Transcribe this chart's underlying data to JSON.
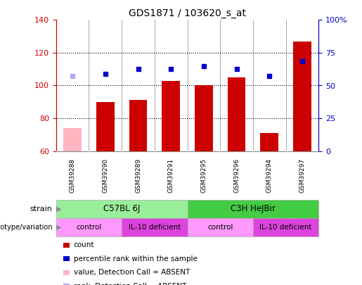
{
  "title": "GDS1871 / 103620_s_at",
  "samples": [
    "GSM39288",
    "GSM39290",
    "GSM39289",
    "GSM39291",
    "GSM39295",
    "GSM39296",
    "GSM39294",
    "GSM39297"
  ],
  "bar_values": [
    74,
    90,
    91,
    103,
    100,
    105,
    71,
    127
  ],
  "bar_colors": [
    "#ffb6c1",
    "#cc0000",
    "#cc0000",
    "#cc0000",
    "#cc0000",
    "#cc0000",
    "#cc0000",
    "#cc0000"
  ],
  "dot_values": [
    106,
    107,
    110,
    110,
    112,
    110,
    106,
    115
  ],
  "dot_colors": [
    "#aaaaee",
    "#0000cc",
    "#0000cc",
    "#0000cc",
    "#0000cc",
    "#0000cc",
    "#0000cc",
    "#0000cc"
  ],
  "ylim_left": [
    60,
    140
  ],
  "ylim_right": [
    0,
    100
  ],
  "yticks_left": [
    60,
    80,
    100,
    120,
    140
  ],
  "yticks_right": [
    0,
    25,
    50,
    75,
    100
  ],
  "yticklabels_right": [
    "0",
    "25",
    "50",
    "75",
    "100%"
  ],
  "strain_labels": [
    {
      "text": "C57BL 6J",
      "start": 0,
      "end": 4,
      "color": "#99ee99"
    },
    {
      "text": "C3H HeJBir",
      "start": 4,
      "end": 8,
      "color": "#44cc44"
    }
  ],
  "genotype_labels": [
    {
      "text": "control",
      "start": 0,
      "end": 2,
      "color": "#ff99ff"
    },
    {
      "text": "IL-10 deficient",
      "start": 2,
      "end": 4,
      "color": "#dd44dd"
    },
    {
      "text": "control",
      "start": 4,
      "end": 6,
      "color": "#ff99ff"
    },
    {
      "text": "IL-10 deficient",
      "start": 6,
      "end": 8,
      "color": "#dd44dd"
    }
  ],
  "legend_items": [
    {
      "label": "count",
      "color": "#cc0000"
    },
    {
      "label": "percentile rank within the sample",
      "color": "#0000cc"
    },
    {
      "label": "value, Detection Call = ABSENT",
      "color": "#ffb6c1"
    },
    {
      "label": "rank, Detection Call = ABSENT",
      "color": "#aaaaee"
    }
  ],
  "bar_width": 0.55,
  "baseline": 60,
  "right_axis_color": "#0000cc",
  "left_axis_color": "#cc0000",
  "grid_color": "#000000",
  "background_color": "#ffffff",
  "plot_bg_color": "#ffffff",
  "tick_area_bg": "#cccccc",
  "grid_lines": [
    80,
    100,
    120
  ]
}
